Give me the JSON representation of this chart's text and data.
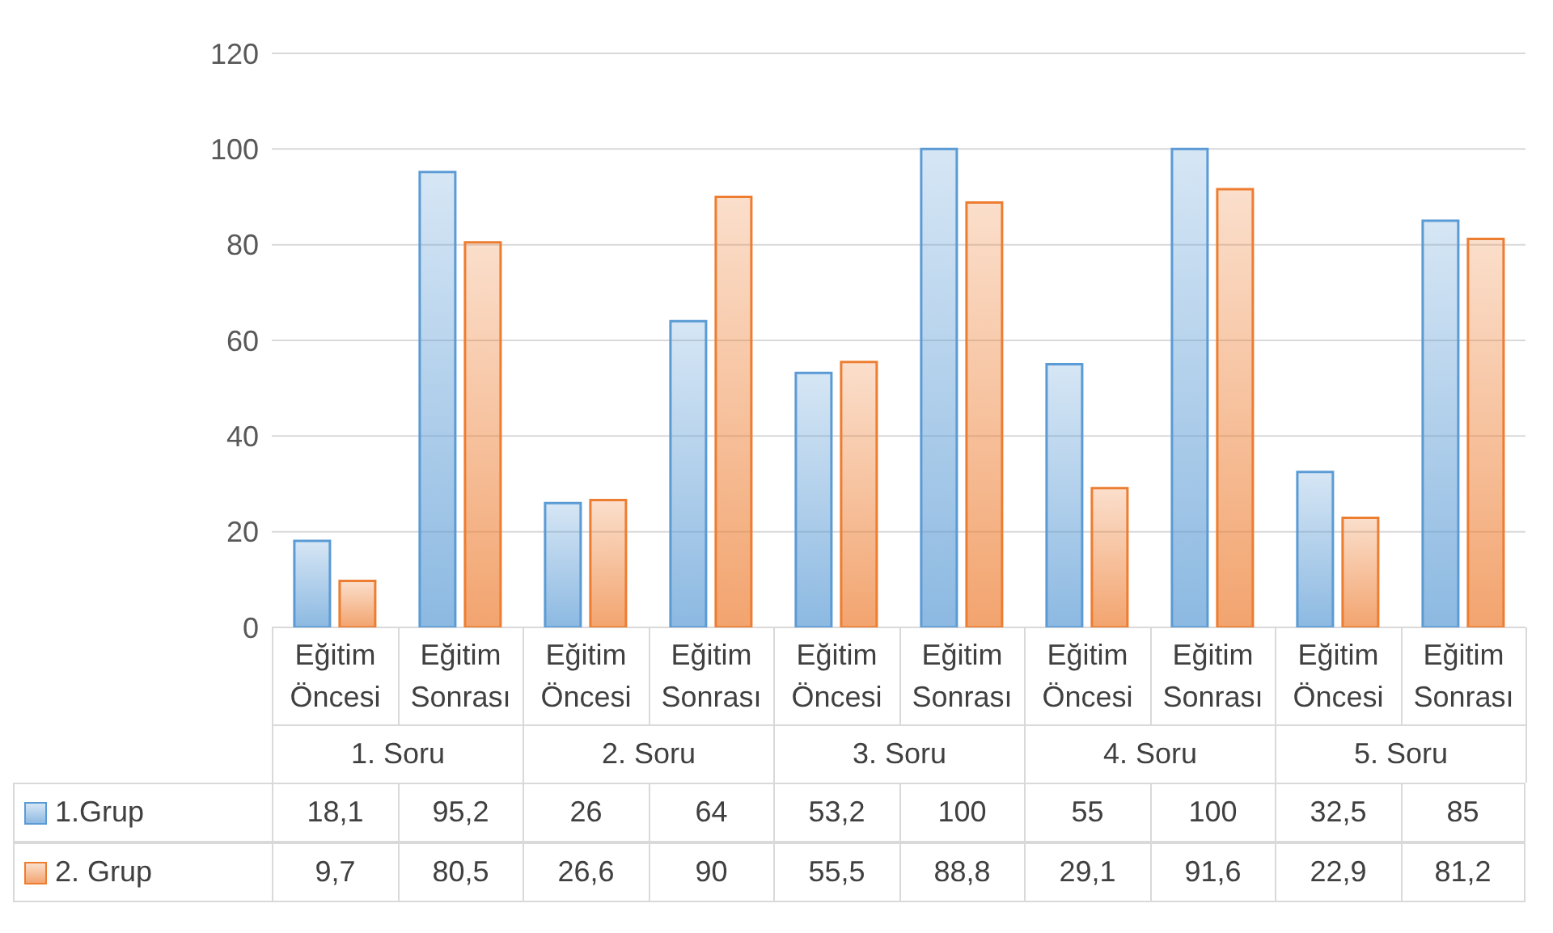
{
  "chart_data": {
    "type": "bar",
    "categories": [
      "Eğitim Öncesi",
      "Eğitim Sonrası",
      "Eğitim Öncesi",
      "Eğitim Sonrası",
      "Eğitim Öncesi",
      "Eğitim Sonrası",
      "Eğitim Öncesi",
      "Eğitim Sonrası",
      "Eğitim Öncesi",
      "Eğitim Sonrası"
    ],
    "annotations": [
      "1. Soru",
      "2. Soru",
      "3. Soru",
      "4. Soru",
      "5. Soru"
    ],
    "series": [
      {
        "name": "1.Grup",
        "color": "#5b9bd5",
        "values": [
          18.1,
          95.2,
          26,
          64,
          53.2,
          100,
          55,
          100,
          32.5,
          85
        ],
        "value_labels": [
          "18,1",
          "95,2",
          "26",
          "64",
          "53,2",
          "100",
          "55",
          "100",
          "32,5",
          "85"
        ]
      },
      {
        "name": "2. Grup",
        "color": "#ed7d31",
        "values": [
          9.7,
          80.5,
          26.6,
          90,
          55.5,
          88.8,
          29.1,
          91.6,
          22.9,
          81.2
        ],
        "value_labels": [
          "9,7",
          "80,5",
          "26,6",
          "90",
          "55,5",
          "88,8",
          "29,1",
          "91,6",
          "22,9",
          "81,2"
        ]
      }
    ],
    "ylim": [
      0,
      120
    ],
    "yticks": [
      0,
      20,
      40,
      60,
      80,
      100,
      120
    ],
    "grid": "y",
    "legend": "bottom"
  }
}
